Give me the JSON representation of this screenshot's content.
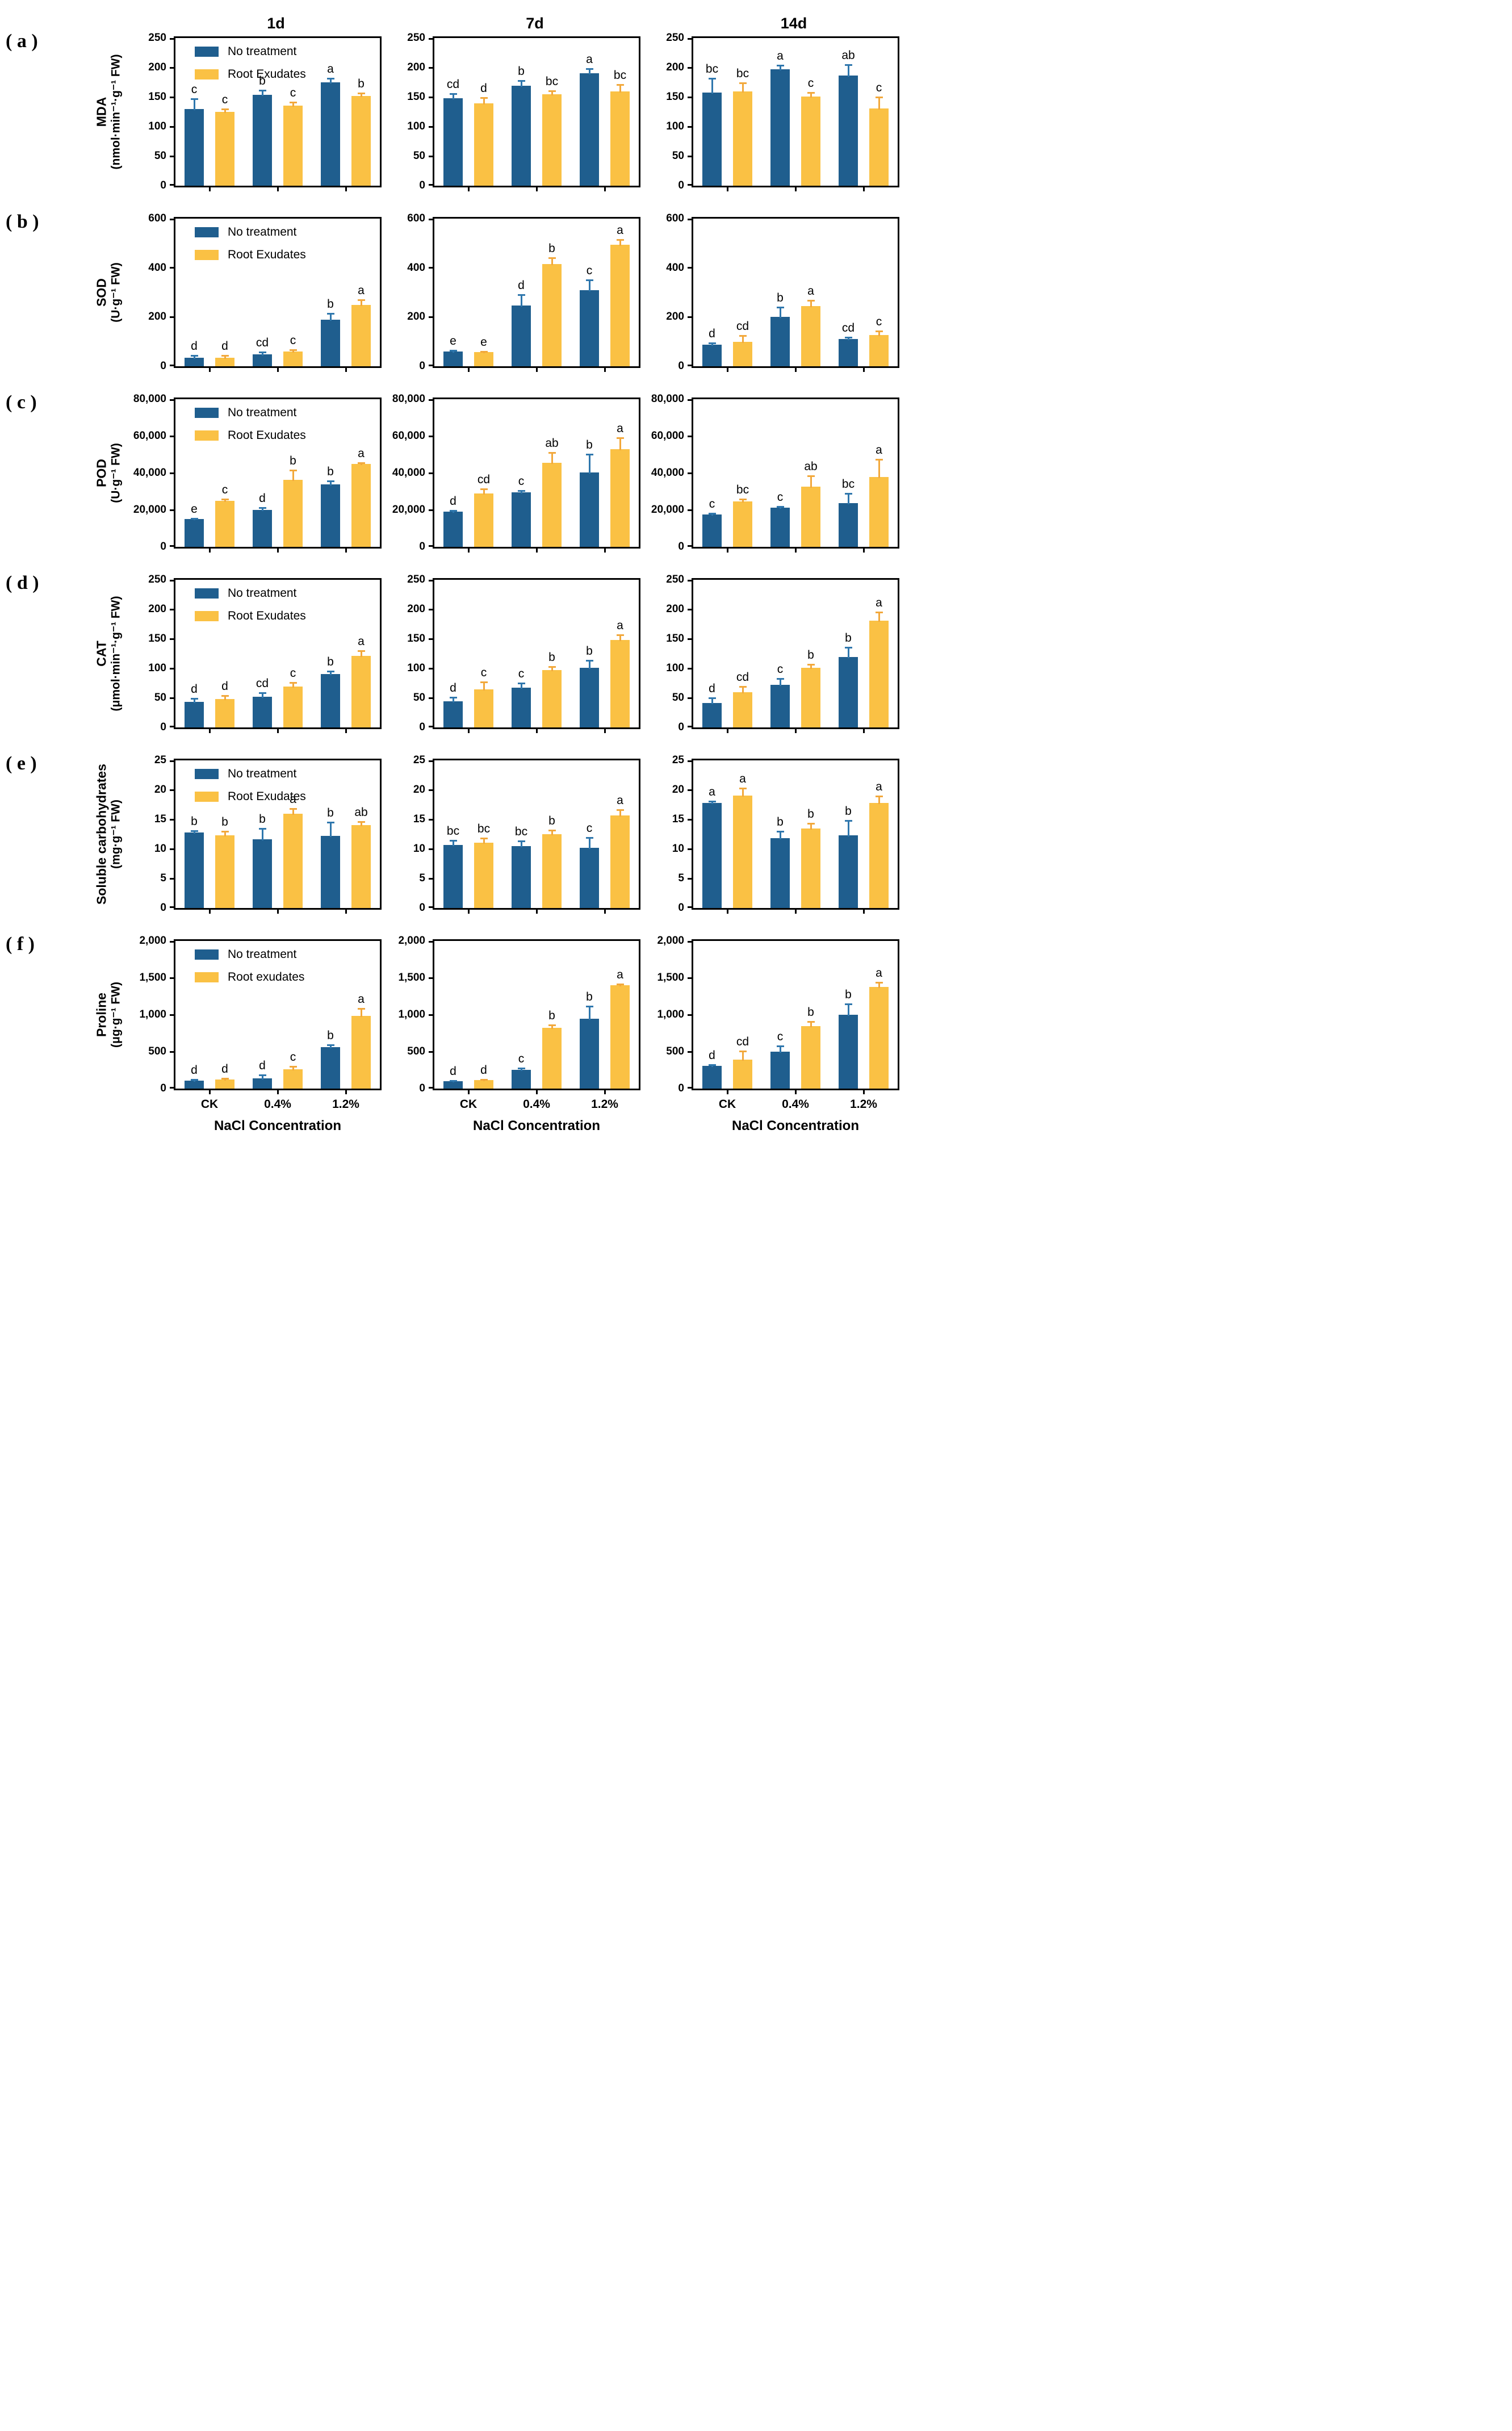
{
  "figure": {
    "column_titles": [
      "1d",
      "7d",
      "14d"
    ],
    "x_tick_labels": [
      "CK",
      "0.4%",
      "1.2%"
    ],
    "x_axis_label": "NaCl  Concentration",
    "colors": {
      "no_treatment_bar": "#1f5e8e",
      "root_exudates_bar": "#fac144",
      "no_treatment_err": "#2f77ad",
      "root_exudates_err": "#f2a83b",
      "axis": "#000000"
    }
  },
  "chart_data": [
    {
      "panel_label": "( a )",
      "type": "bar",
      "measure": "MDA",
      "unit": "(nmol·min⁻¹·g⁻¹ FW)",
      "ylim": [
        0,
        250
      ],
      "yticks": [
        0,
        50,
        100,
        150,
        200,
        250
      ],
      "ytick_labels": [
        "0",
        "50",
        "100",
        "150",
        "200",
        "250"
      ],
      "categories": [
        "CK",
        "0.4%",
        "1.2%"
      ],
      "legend": [
        "No treatment",
        "Root Exudates"
      ],
      "panels": [
        {
          "title": "1d",
          "series": [
            {
              "name": "No treatment",
              "values": [
                130,
                154,
                175
              ],
              "errors": [
                17,
                8,
                7
              ],
              "letters": [
                "c",
                "b",
                "a"
              ]
            },
            {
              "name": "Root Exudates",
              "values": [
                125,
                136,
                152
              ],
              "errors": [
                5,
                5,
                5
              ],
              "letters": [
                "c",
                "c",
                "b"
              ]
            }
          ]
        },
        {
          "title": "7d",
          "series": [
            {
              "name": "No treatment",
              "values": [
                148,
                169,
                190
              ],
              "errors": [
                8,
                9,
                8
              ],
              "letters": [
                "cd",
                "b",
                "a"
              ]
            },
            {
              "name": "Root Exudates",
              "values": [
                139,
                155,
                160
              ],
              "errors": [
                10,
                6,
                11
              ],
              "letters": [
                "d",
                "bc",
                "bc"
              ]
            }
          ]
        },
        {
          "title": "14d",
          "series": [
            {
              "name": "No treatment",
              "values": [
                158,
                197,
                187
              ],
              "errors": [
                24,
                7,
                18
              ],
              "letters": [
                "bc",
                "a",
                "ab"
              ]
            },
            {
              "name": "Root Exudates",
              "values": [
                160,
                151,
                131
              ],
              "errors": [
                14,
                7,
                19
              ],
              "letters": [
                "bc",
                "c",
                "c"
              ]
            }
          ]
        }
      ]
    },
    {
      "panel_label": "( b )",
      "type": "bar",
      "measure": "SOD",
      "unit": "(U·g⁻¹ FW)",
      "ylim": [
        0,
        600
      ],
      "yticks": [
        0,
        200,
        400,
        600
      ],
      "ytick_labels": [
        "0",
        "200",
        "400",
        "600"
      ],
      "categories": [
        "CK",
        "0.4%",
        "1.2%"
      ],
      "legend": [
        "No treatment",
        "Root Exudates"
      ],
      "panels": [
        {
          "title": "1d",
          "series": [
            {
              "name": "No treatment",
              "values": [
                35,
                48,
                190
              ],
              "errors": [
                8,
                10,
                25
              ],
              "letters": [
                "d",
                "cd",
                "b"
              ]
            },
            {
              "name": "Root Exudates",
              "values": [
                35,
                60,
                250
              ],
              "errors": [
                10,
                8,
                20
              ],
              "letters": [
                "d",
                "c",
                "a"
              ]
            }
          ]
        },
        {
          "title": "7d",
          "series": [
            {
              "name": "No treatment",
              "values": [
                60,
                248,
                310
              ],
              "errors": [
                5,
                42,
                40
              ],
              "letters": [
                "e",
                "d",
                "c"
              ]
            },
            {
              "name": "Root Exudates",
              "values": [
                58,
                415,
                495
              ],
              "errors": [
                3,
                25,
                20
              ],
              "letters": [
                "e",
                "b",
                "a"
              ]
            }
          ]
        },
        {
          "title": "14d",
          "series": [
            {
              "name": "No treatment",
              "values": [
                88,
                200,
                110
              ],
              "errors": [
                7,
                40,
                8
              ],
              "letters": [
                "d",
                "b",
                "cd"
              ]
            },
            {
              "name": "Root Exudates",
              "values": [
                100,
                245,
                128
              ],
              "errors": [
                25,
                22,
                14
              ],
              "letters": [
                "cd",
                "a",
                "c"
              ]
            }
          ]
        }
      ]
    },
    {
      "panel_label": "( c )",
      "type": "bar",
      "measure": "POD",
      "unit": "(U·g⁻¹ FW)",
      "ylim": [
        0,
        80000
      ],
      "yticks": [
        0,
        20000,
        40000,
        60000,
        80000
      ],
      "ytick_labels": [
        "0",
        "20,000",
        "40,000",
        "60,000",
        "80,000"
      ],
      "categories": [
        "CK",
        "0.4%",
        "1.2%"
      ],
      "legend": [
        "No treatment",
        "Root Exudates"
      ],
      "panels": [
        {
          "title": "1d",
          "series": [
            {
              "name": "No treatment",
              "values": [
                15000,
                20000,
                34000
              ],
              "errors": [
                500,
                1200,
                1800
              ],
              "letters": [
                "e",
                "d",
                "b"
              ]
            },
            {
              "name": "Root Exudates",
              "values": [
                25000,
                36200,
                45000
              ],
              "errors": [
                700,
                5200,
                600
              ],
              "letters": [
                "c",
                "b",
                "a"
              ]
            }
          ]
        },
        {
          "title": "7d",
          "series": [
            {
              "name": "No treatment",
              "values": [
                19200,
                29500,
                40300
              ],
              "errors": [
                500,
                1000,
                10000
              ],
              "letters": [
                "d",
                "c",
                "b"
              ]
            },
            {
              "name": "Root Exudates",
              "values": [
                29000,
                45500,
                53000
              ],
              "errors": [
                2500,
                5500,
                6000
              ],
              "letters": [
                "cd",
                "ab",
                "a"
              ]
            }
          ]
        },
        {
          "title": "14d",
          "series": [
            {
              "name": "No treatment",
              "values": [
                17500,
                21200,
                23700
              ],
              "errors": [
                700,
                500,
                5300
              ],
              "letters": [
                "c",
                "c",
                "bc"
              ]
            },
            {
              "name": "Root Exudates",
              "values": [
                24500,
                32500,
                38000
              ],
              "errors": [
                1200,
                6000,
                9500
              ],
              "letters": [
                "bc",
                "ab",
                "a"
              ]
            }
          ]
        }
      ]
    },
    {
      "panel_label": "( d )",
      "type": "bar",
      "measure": "CAT",
      "unit": "(μmol·min⁻¹·g⁻¹ FW)",
      "ylim": [
        0,
        250
      ],
      "yticks": [
        0,
        50,
        100,
        150,
        200,
        250
      ],
      "ytick_labels": [
        "0",
        "50",
        "100",
        "150",
        "200",
        "250"
      ],
      "categories": [
        "CK",
        "0.4%",
        "1.2%"
      ],
      "legend": [
        "No treatment",
        "Root Exudates"
      ],
      "panels": [
        {
          "title": "1d",
          "series": [
            {
              "name": "No treatment",
              "values": [
                43,
                52,
                90
              ],
              "errors": [
                6,
                7,
                5
              ],
              "letters": [
                "d",
                "cd",
                "b"
              ]
            },
            {
              "name": "Root Exudates",
              "values": [
                48,
                69,
                121
              ],
              "errors": [
                6,
                7,
                9
              ],
              "letters": [
                "d",
                "c",
                "a"
              ]
            }
          ]
        },
        {
          "title": "7d",
          "series": [
            {
              "name": "No treatment",
              "values": [
                44,
                67,
                101
              ],
              "errors": [
                7,
                8,
                12
              ],
              "letters": [
                "d",
                "c",
                "b"
              ]
            },
            {
              "name": "Root Exudates",
              "values": [
                64,
                97,
                148
              ],
              "errors": [
                13,
                6,
                9
              ],
              "letters": [
                "c",
                "b",
                "a"
              ]
            }
          ]
        },
        {
          "title": "14d",
          "series": [
            {
              "name": "No treatment",
              "values": [
                41,
                72,
                119
              ],
              "errors": [
                9,
                11,
                17
              ],
              "letters": [
                "d",
                "c",
                "b"
              ]
            },
            {
              "name": "Root Exudates",
              "values": [
                60,
                101,
                181
              ],
              "errors": [
                9,
                6,
                14
              ],
              "letters": [
                "cd",
                "b",
                "a"
              ]
            }
          ]
        }
      ]
    },
    {
      "panel_label": "( e )",
      "type": "bar",
      "measure": "Soluble carbohydrates",
      "unit": "(mg·g⁻¹ FW)",
      "ylim": [
        0,
        25
      ],
      "yticks": [
        0,
        5,
        10,
        15,
        20,
        25
      ],
      "ytick_labels": [
        "0",
        "5",
        "10",
        "15",
        "20",
        "25"
      ],
      "categories": [
        "CK",
        "0.4%",
        "1.2%"
      ],
      "legend": [
        "No treatment",
        "Root Exudates"
      ],
      "panels": [
        {
          "title": "1d",
          "series": [
            {
              "name": "No treatment",
              "values": [
                12.8,
                11.6,
                12.2
              ],
              "errors": [
                0.3,
                1.9,
                2.3
              ],
              "letters": [
                "b",
                "b",
                "b"
              ]
            },
            {
              "name": "Root Exudates",
              "values": [
                12.3,
                16.0,
                14.0
              ],
              "errors": [
                0.7,
                0.8,
                0.6
              ],
              "letters": [
                "b",
                "a",
                "ab"
              ]
            }
          ]
        },
        {
          "title": "7d",
          "series": [
            {
              "name": "No treatment",
              "values": [
                10.7,
                10.5,
                10.2
              ],
              "errors": [
                0.7,
                0.8,
                1.7
              ],
              "letters": [
                "bc",
                "bc",
                "c"
              ]
            },
            {
              "name": "Root Exudates",
              "values": [
                11.1,
                12.5,
                15.7
              ],
              "errors": [
                0.7,
                0.7,
                0.9
              ],
              "letters": [
                "bc",
                "b",
                "a"
              ]
            }
          ]
        },
        {
          "title": "14d",
          "series": [
            {
              "name": "No treatment",
              "values": [
                17.8,
                11.8,
                12.3
              ],
              "errors": [
                0.3,
                1.2,
                2.5
              ],
              "letters": [
                "a",
                "b",
                "b"
              ]
            },
            {
              "name": "Root Exudates",
              "values": [
                19.0,
                13.5,
                17.8
              ],
              "errors": [
                1.3,
                0.8,
                1.1
              ],
              "letters": [
                "a",
                "b",
                "a"
              ]
            }
          ]
        }
      ]
    },
    {
      "panel_label": "( f )",
      "type": "bar",
      "measure": "Proline",
      "unit": "(μg·g⁻¹ FW)",
      "ylim": [
        0,
        2000
      ],
      "yticks": [
        0,
        500,
        1000,
        1500,
        2000
      ],
      "ytick_labels": [
        "0",
        "500",
        "1,000",
        "1,500",
        "2,000"
      ],
      "categories": [
        "CK",
        "0.4%",
        "1.2%"
      ],
      "legend": [
        "No treatment",
        "Root exudates"
      ],
      "panels": [
        {
          "title": "1d",
          "series": [
            {
              "name": "No treatment",
              "values": [
                105,
                140,
                560
              ],
              "errors": [
                15,
                45,
                30
              ],
              "letters": [
                "d",
                "d",
                "b"
              ]
            },
            {
              "name": "Root exudates",
              "values": [
                120,
                260,
                985
              ],
              "errors": [
                20,
                40,
                100
              ],
              "letters": [
                "d",
                "c",
                "a"
              ]
            }
          ]
        },
        {
          "title": "7d",
          "series": [
            {
              "name": "No treatment",
              "values": [
                100,
                255,
                945
              ],
              "errors": [
                10,
                25,
                170
              ],
              "letters": [
                "d",
                "c",
                "b"
              ]
            },
            {
              "name": "Root exudates",
              "values": [
                115,
                820,
                1400
              ],
              "errors": [
                10,
                40,
                15
              ],
              "letters": [
                "d",
                "b",
                "a"
              ]
            }
          ]
        },
        {
          "title": "14d",
          "series": [
            {
              "name": "No treatment",
              "values": [
                310,
                500,
                1000
              ],
              "errors": [
                15,
                75,
                150
              ],
              "letters": [
                "d",
                "c",
                "b"
              ]
            },
            {
              "name": "Root exudates",
              "values": [
                390,
                850,
                1380
              ],
              "errors": [
                115,
                60,
                60
              ],
              "letters": [
                "cd",
                "b",
                "a"
              ]
            }
          ]
        }
      ]
    }
  ]
}
